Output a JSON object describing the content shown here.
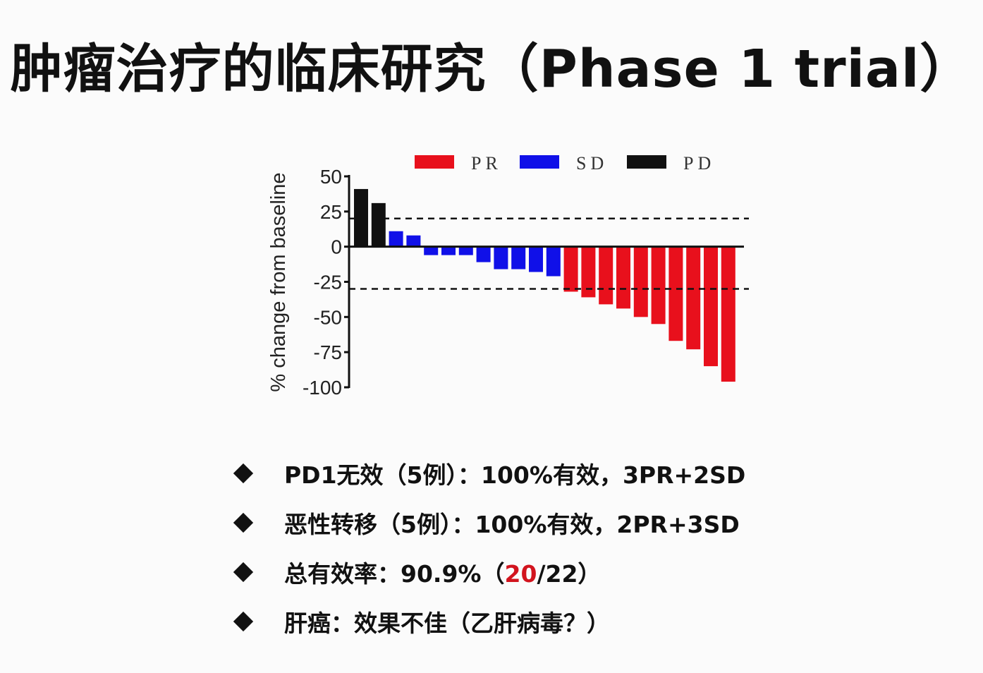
{
  "title": "肿瘤治疗的临床研究（Phase 1 trial）",
  "chart_data": {
    "type": "bar",
    "subtype": "waterfall",
    "ylabel": "% change from baseline",
    "xlabel": "",
    "ylim": [
      -100,
      50
    ],
    "yticks": [
      50,
      25,
      0,
      -25,
      -50,
      -75,
      -100
    ],
    "legend": [
      {
        "name": "PR",
        "color": "#e8101c"
      },
      {
        "name": "SD",
        "color": "#1010e8"
      },
      {
        "name": "PD",
        "color": "#111111"
      }
    ],
    "legend_position": "top",
    "reference_lines": [
      20,
      -30
    ],
    "bars": [
      {
        "value": 41,
        "group": "PD"
      },
      {
        "value": 31,
        "group": "PD"
      },
      {
        "value": 11,
        "group": "SD"
      },
      {
        "value": 8,
        "group": "SD"
      },
      {
        "value": -6,
        "group": "SD"
      },
      {
        "value": -6,
        "group": "SD"
      },
      {
        "value": -6,
        "group": "SD"
      },
      {
        "value": -11,
        "group": "SD"
      },
      {
        "value": -16,
        "group": "SD"
      },
      {
        "value": -16,
        "group": "SD"
      },
      {
        "value": -18,
        "group": "SD"
      },
      {
        "value": -21,
        "group": "SD"
      },
      {
        "value": -32,
        "group": "PR"
      },
      {
        "value": -36,
        "group": "PR"
      },
      {
        "value": -41,
        "group": "PR"
      },
      {
        "value": -44,
        "group": "PR"
      },
      {
        "value": -50,
        "group": "PR"
      },
      {
        "value": -55,
        "group": "PR"
      },
      {
        "value": -67,
        "group": "PR"
      },
      {
        "value": -73,
        "group": "PR"
      },
      {
        "value": -85,
        "group": "PR"
      },
      {
        "value": -96,
        "group": "PR"
      }
    ]
  },
  "bullets": [
    {
      "text": "PD1无效（5例）：100%有效，3PR+2SD"
    },
    {
      "text": "恶性转移（5例）：100%有效，2PR+3SD"
    },
    {
      "pre": "总有效率：90.9%（",
      "highlight": "20",
      "post": "/22）"
    },
    {
      "text": "肝癌：效果不佳（乙肝病毒？）"
    }
  ],
  "colors": {
    "highlight": "#d2141e",
    "text": "#111111"
  }
}
